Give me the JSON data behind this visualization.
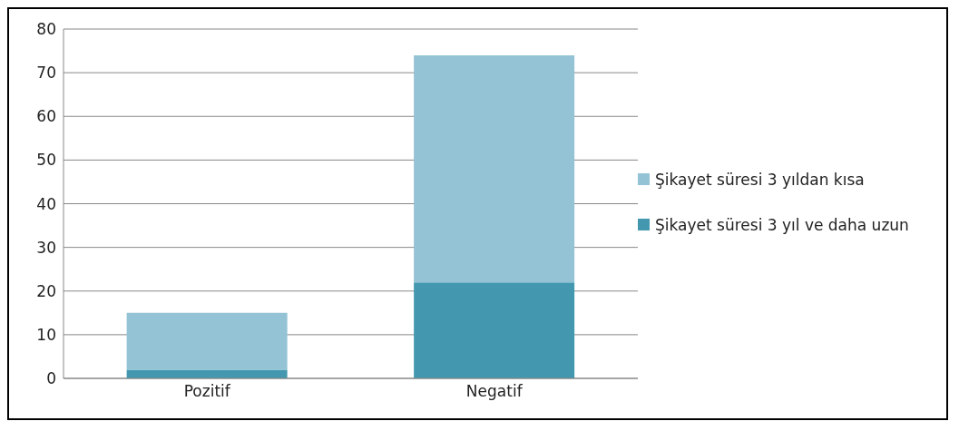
{
  "chart_data": {
    "type": "bar",
    "stacked": true,
    "categories": [
      "Pozitif",
      "Negatif"
    ],
    "series": [
      {
        "name": "Şikayet süresi 3 yıl ve daha uzun",
        "color": "#4398b0",
        "values": [
          2,
          22
        ]
      },
      {
        "name": "Şikayet süresi 3 yıldan kısa",
        "color": "#93c3d5",
        "values": [
          13,
          52
        ]
      }
    ],
    "ylim": [
      0,
      80
    ],
    "yticks": [
      0,
      10,
      20,
      30,
      40,
      50,
      60,
      70,
      80
    ],
    "grid": "y",
    "legend": "right"
  }
}
